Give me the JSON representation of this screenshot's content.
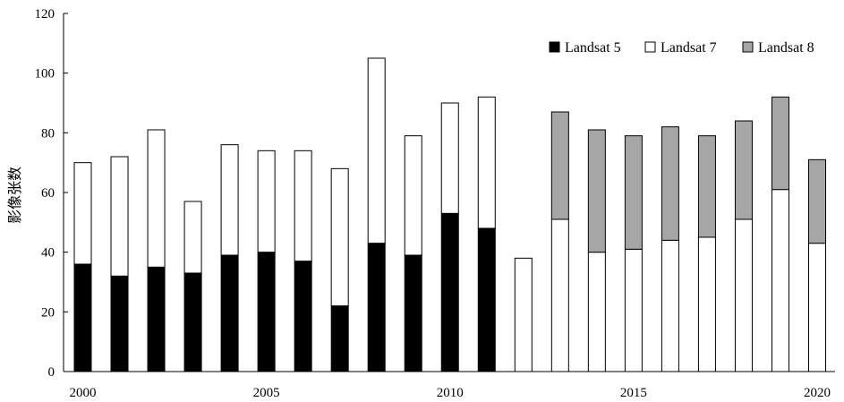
{
  "chart_data": {
    "type": "bar",
    "stacked": true,
    "ylabel": "影像张数",
    "ylim": [
      0,
      120
    ],
    "yticks": [
      0,
      20,
      40,
      60,
      80,
      100,
      120
    ],
    "xlim": [
      2000,
      2020
    ],
    "xticks": [
      2000,
      2005,
      2010,
      2015,
      2020
    ],
    "x": [
      2000,
      2001,
      2002,
      2003,
      2004,
      2005,
      2006,
      2007,
      2008,
      2009,
      2010,
      2011,
      2012,
      2013,
      2014,
      2015,
      2016,
      2017,
      2018,
      2019,
      2020
    ],
    "series": [
      {
        "name": "Landsat 5",
        "color": "#000000",
        "values": [
          36,
          32,
          35,
          33,
          39,
          40,
          37,
          22,
          43,
          39,
          53,
          48,
          0,
          0,
          0,
          0,
          0,
          0,
          0,
          0,
          0
        ]
      },
      {
        "name": "Landsat 7",
        "color": "#ffffff",
        "values": [
          34,
          40,
          46,
          24,
          37,
          34,
          37,
          46,
          62,
          40,
          37,
          44,
          38,
          51,
          40,
          41,
          44,
          45,
          51,
          61,
          43
        ]
      },
      {
        "name": "Landsat 8",
        "color": "#a6a6a6",
        "values": [
          0,
          0,
          0,
          0,
          0,
          0,
          0,
          0,
          0,
          0,
          0,
          0,
          0,
          36,
          41,
          38,
          38,
          34,
          33,
          31,
          28
        ]
      }
    ],
    "legend_position": "top-right",
    "grid": false
  }
}
